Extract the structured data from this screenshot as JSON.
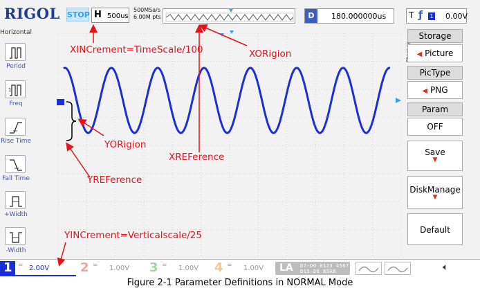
{
  "header": {
    "brand": "RIGOL",
    "run_state": "STOP",
    "horizontal_label": "H",
    "timebase": "500us",
    "sample_rate": "500MSa/s",
    "memory_depth": "6.00M pts",
    "delay_label": "D",
    "delay_value": "180.000000us",
    "trigger_label": "T",
    "trigger_source": "1",
    "trigger_level": "0.00V"
  },
  "left_menu": {
    "title": "Horizontal",
    "items": [
      {
        "label": "Period",
        "icon": "period-icon"
      },
      {
        "label": "Freq",
        "icon": "freq-icon"
      },
      {
        "label": "Rise Time",
        "icon": "rise-time-icon"
      },
      {
        "label": "Fall Time",
        "icon": "fall-time-icon"
      },
      {
        "label": "+Width",
        "icon": "positive-width-icon"
      },
      {
        "label": "-Width",
        "icon": "negative-width-icon"
      }
    ]
  },
  "right_menu": {
    "side_label": "Storage",
    "storage_title": "Storage",
    "storage_value": "Picture",
    "pictype_title": "PicType",
    "pictype_value": "PNG",
    "param_title": "Param",
    "param_value": "OFF",
    "save_label": "Save",
    "diskmanage_label": "DiskManage",
    "default_label": "Default"
  },
  "channels": [
    {
      "num": "1",
      "coupling": "=",
      "scale": "2.00V",
      "color": "#1a2fd6"
    },
    {
      "num": "2",
      "coupling": "=",
      "scale": "1.00V",
      "color": "#f0a0a0"
    },
    {
      "num": "3",
      "coupling": "=",
      "scale": "1.00V",
      "color": "#9fd59f"
    },
    {
      "num": "4",
      "coupling": "=",
      "scale": "1.00V",
      "color": "#f0c890"
    }
  ],
  "logic_analyzer": {
    "label": "LA",
    "bits_row1": "D7-D0 0123 4567",
    "bits_row2": "D15-D8 89AB CDEF"
  },
  "annotations": {
    "xincrement": "XINCrement=TimeScale/100",
    "xorigin": "XORigion",
    "yorigin": "YORigion",
    "xreference": "XREFerence",
    "yreference": "YREFerence",
    "yincrement": "YINCrement=Verticalscale/25"
  },
  "caption": "Figure 2-1 Parameter Definitions in NORMAL Mode",
  "colors": {
    "waveform": "#1a2fd6",
    "annotation": "#e6121a",
    "brand": "#1f3d8c"
  }
}
